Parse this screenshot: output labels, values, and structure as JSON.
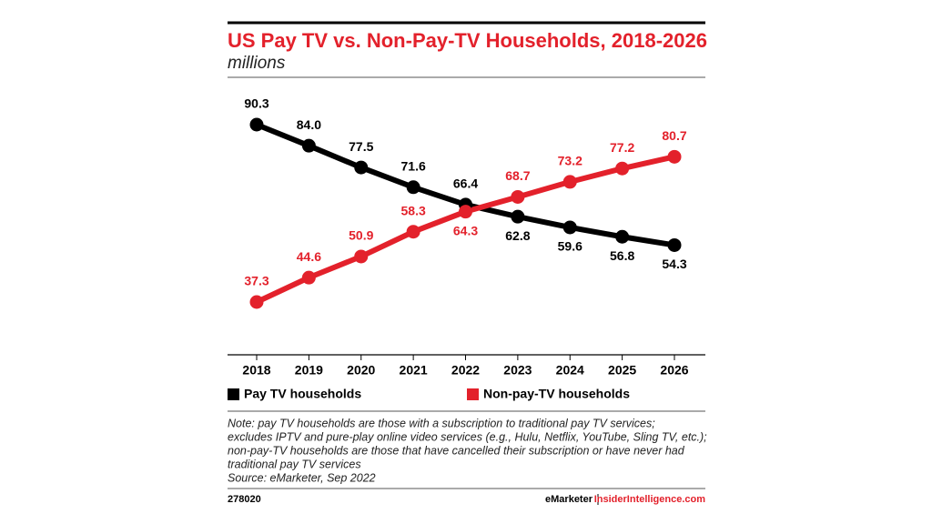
{
  "chart_data": {
    "type": "line",
    "title": "US Pay TV vs. Non-Pay-TV Households, 2018-2026",
    "subtitle": "millions",
    "categories": [
      "2018",
      "2019",
      "2020",
      "2021",
      "2022",
      "2023",
      "2024",
      "2025",
      "2026"
    ],
    "series": [
      {
        "name": "Pay TV households",
        "color": "#000000",
        "values": [
          90.3,
          84.0,
          77.5,
          71.6,
          66.4,
          62.8,
          59.6,
          56.8,
          54.3
        ],
        "value_labels": [
          "90.3",
          "84.0",
          "77.5",
          "71.6",
          "66.4",
          "62.8",
          "59.6",
          "56.8",
          "54.3"
        ]
      },
      {
        "name": "Non-pay-TV households",
        "color": "#e3212b",
        "values": [
          37.3,
          44.6,
          50.9,
          58.3,
          64.3,
          68.7,
          73.2,
          77.2,
          80.7
        ],
        "value_labels": [
          "37.3",
          "44.6",
          "50.9",
          "58.3",
          "64.3",
          "68.7",
          "73.2",
          "77.2",
          "80.7"
        ]
      }
    ],
    "note": [
      "Note: pay TV households are those with a subscription to traditional pay TV services;",
      "excludes IPTV and pure-play online video services (e.g., Hulu, Netflix, YouTube, Sling TV, etc.);",
      "non-pay-TV households are those that have cancelled their subscription or have never had",
      "traditional pay TV services",
      "Source: eMarketer, Sep 2022"
    ],
    "chart_id": "278020",
    "brand": "eMarketer",
    "website": "InsiderIntelligence.com"
  }
}
